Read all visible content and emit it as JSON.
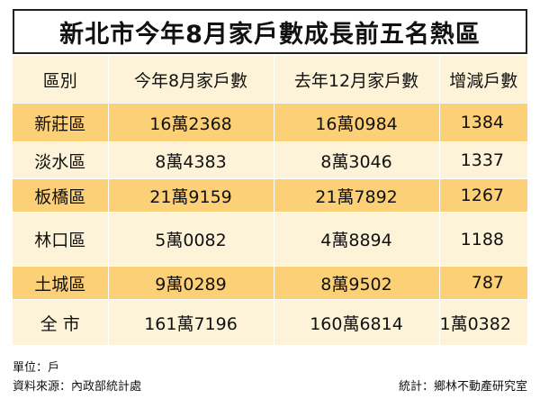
{
  "title": "新北市今年8月家戶數成長前五名熱區",
  "headers": [
    "區別",
    "今年8月家戶數",
    "去年12月家戶數",
    "增減戶數"
  ],
  "rows": [
    {
      "area": "新莊區",
      "aug": "16萬2368",
      "dec": "16萬0984",
      "change": "1384"
    },
    {
      "area": "淡水區",
      "aug": "8萬4383",
      "dec": "8萬3046",
      "change": "1337"
    },
    {
      "area": "板橋區",
      "aug": "21萬9159",
      "dec": "21萬7892",
      "change": "1267"
    },
    {
      "area": "林口區",
      "aug": "5萬0082",
      "dec": "4萬8894",
      "change": "1188"
    },
    {
      "area": "土城區",
      "aug": "9萬0289",
      "dec": "8萬9502",
      "change": "787"
    },
    {
      "area": "全 市",
      "aug": "161萬7196",
      "dec": "160萬6814",
      "change": "1萬0382"
    }
  ],
  "footer": {
    "unit": "單位：戶",
    "source": "資料來源：內政部統計處",
    "stats": "統計：鄉林不動產研究室"
  },
  "colors": {
    "row_highlight": "#fcd077",
    "row_light": "#fdf3d8"
  }
}
